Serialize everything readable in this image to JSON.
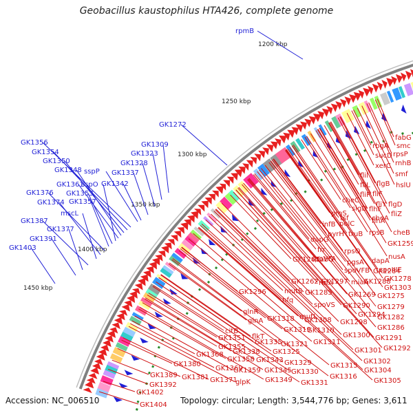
{
  "title": "Geobacillus kaustophilus HTA426, complete genome",
  "footer": {
    "accession": "Accession: NC_006510",
    "summary": "Topology: circular; Length: 3,544,776 bp; Genes: 3,611"
  },
  "scale_labels": [
    {
      "text": "1200 kbp"
    },
    {
      "text": "1250 kbp"
    },
    {
      "text": "1300 kbp"
    },
    {
      "text": "1350 kbp"
    },
    {
      "text": "1400 kbp"
    },
    {
      "text": "1450 kbp"
    }
  ],
  "blue_labels": [
    "rpmB",
    "GK1272",
    "GK1309",
    "GK1323",
    "GK1328",
    "GK1337",
    "GK1342",
    "sspP",
    "GK1356",
    "GK1354",
    "GK1350",
    "GK1348",
    "GK1361",
    "sspO",
    "GK1353",
    "GK1357",
    "GK1376",
    "GK1374",
    "mscL",
    "GK1387",
    "GK1377",
    "GK1391",
    "GK1403"
  ],
  "red_labels": [
    "fabG",
    "smc",
    "rbgA",
    "rpsP",
    "sucD",
    "rnhB",
    "xerC",
    "smf",
    "flil",
    "flgB",
    "hslU",
    "fliL",
    "fliF",
    "fliP",
    "fliY",
    "flgD",
    "cheC",
    "fliZ",
    "sigD",
    "flhF",
    "cheA",
    "proS",
    "flhA",
    "tsf",
    "cheB",
    "infB",
    "polC",
    "rpsB",
    "truB",
    "GK1259",
    "pyrH",
    "dapG",
    "rpsO",
    "nusA",
    "frr",
    "dapA",
    "GK1261",
    "fabG",
    "spoIIIE",
    "spoVFA",
    "pgsA",
    "GK1284",
    "spoVFB",
    "GK1262",
    "GK1297",
    "GK1288",
    "GK1278",
    "rbfA",
    "miaA",
    "GK1303",
    "GK1296",
    "GK1285",
    "GK1269",
    "mutS",
    "hfq",
    "GK1275",
    "spoVS",
    "GK1290",
    "glnR",
    "GK1294",
    "GK1279",
    "mutL",
    "GK1308",
    "GK1318",
    "glnA",
    "GK1298",
    "GK1282",
    "GK1319",
    "GK1310",
    "GK1286",
    "citB",
    "GK1300",
    "GK1351",
    "flkT",
    "GK1311",
    "GK1291",
    "GK1355",
    "GK1335",
    "GK1321",
    "GK1301",
    "GK1292",
    "GK1338",
    "GK1325",
    "GK1315",
    "GK1368",
    "GK1358",
    "GK1343",
    "GK1329",
    "GK1302",
    "GK1380",
    "GK1369",
    "GK1359",
    "GK1345",
    "GK1330",
    "GK1316",
    "GK1304",
    "GK1389",
    "GK1381",
    "GK1371",
    "GK1349",
    "GK1331",
    "GK1305",
    "GK1392",
    "glpK",
    "GK1402",
    "GK1404"
  ],
  "colors": {
    "backbone": "#808080",
    "forward": "#e82020",
    "reverse": "#1f1fd6",
    "gc_tick": "#2a8a2a",
    "blue_text": "#1f1fd6",
    "red_text": "#d01010"
  }
}
